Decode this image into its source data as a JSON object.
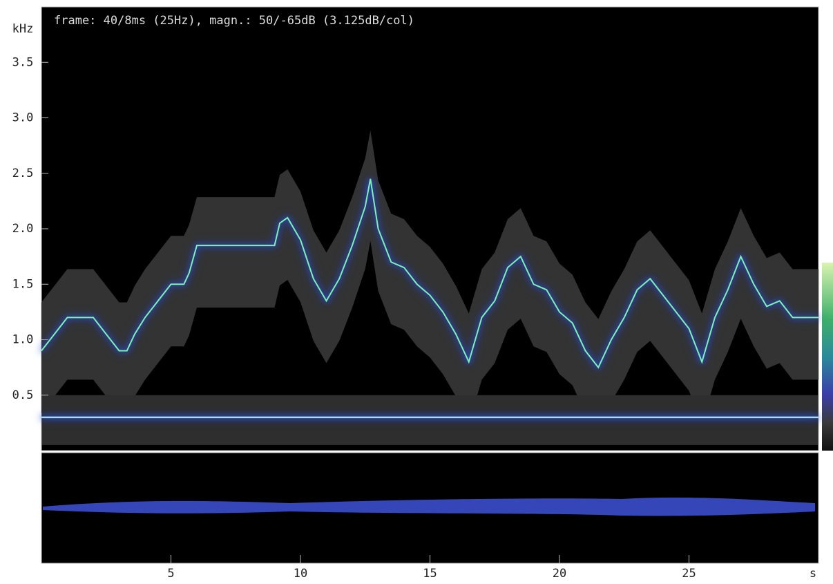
{
  "chart_data": {
    "type": "spectrogram",
    "header": "frame: 40/8ms (25Hz),  magn.: 50/-65dB (3.125dB/col)",
    "y_unit": "kHz",
    "x_unit": "s",
    "xlim": [
      0,
      30
    ],
    "xticks": [
      5,
      10,
      15,
      20,
      25
    ],
    "ylim": [
      0,
      4
    ],
    "yticks": [
      0.5,
      {
        "value": 1,
        "label": "1.0"
      },
      1.5,
      {
        "value": 2,
        "label": "2.0"
      },
      2.5,
      {
        "value": 3,
        "label": "3.0"
      },
      3.5
    ],
    "series": [
      {
        "color": "#7ff0b8",
        "x": [
          0,
          0.5,
          1,
          2,
          2.5,
          3,
          3.3,
          3.6,
          4,
          4.5,
          5,
          5.5,
          5.7,
          6,
          7,
          8,
          9,
          9.2,
          9.5,
          10,
          10.5,
          11,
          11.5,
          12,
          12.5,
          12.7,
          13,
          13.5,
          14,
          14.5,
          15,
          15.5,
          16,
          16.5,
          17,
          17.5,
          18,
          18.5,
          19,
          19.5,
          20,
          20.5,
          21,
          21.5,
          22,
          22.5,
          23,
          23.5,
          24,
          24.5,
          25,
          25.5,
          26,
          26.5,
          27,
          27.5,
          28,
          28.5,
          29,
          30
        ],
        "values": [
          0.9,
          1.05,
          1.2,
          1.2,
          1.05,
          0.9,
          0.9,
          1.05,
          1.2,
          1.35,
          1.5,
          1.5,
          1.6,
          1.85,
          1.85,
          1.85,
          1.85,
          2.05,
          2.1,
          1.9,
          1.55,
          1.35,
          1.55,
          1.85,
          2.2,
          2.45,
          2.0,
          1.7,
          1.65,
          1.5,
          1.4,
          1.25,
          1.05,
          0.8,
          1.2,
          1.35,
          1.65,
          1.75,
          1.5,
          1.45,
          1.25,
          1.15,
          0.9,
          0.75,
          1.0,
          1.2,
          1.45,
          1.55,
          1.4,
          1.25,
          1.1,
          0.8,
          1.2,
          1.45,
          1.75,
          1.5,
          1.3,
          1.35,
          1.2,
          1.2
        ]
      },
      {
        "color": "#a8d8f8",
        "x": [
          0,
          30
        ],
        "values": [
          0.3,
          0.3
        ]
      }
    ]
  }
}
